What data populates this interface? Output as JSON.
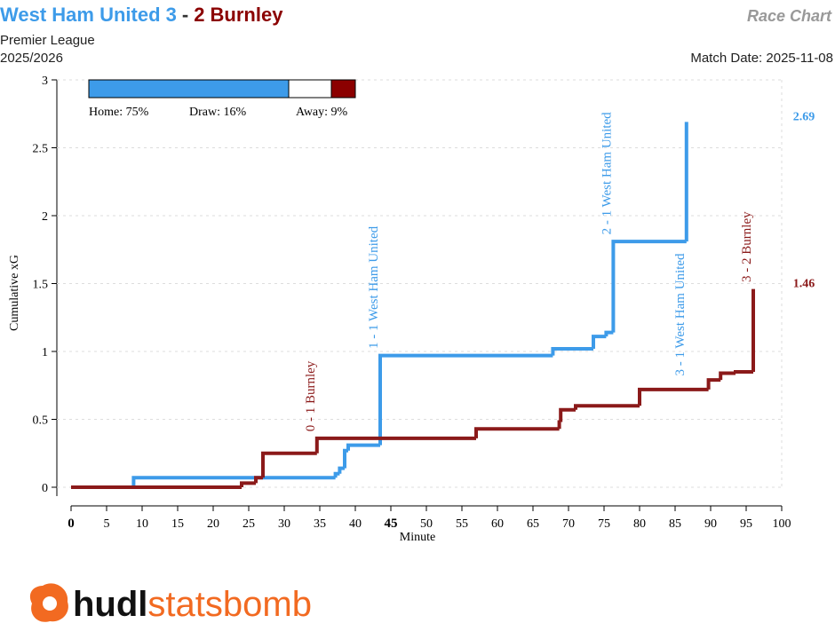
{
  "chart_data": {
    "type": "step",
    "title_home": "West Ham United 3",
    "title_separator": "-",
    "title_away": "2 Burnley",
    "subtitle": "Premier League",
    "season": "2025/2026",
    "chart_name": "Race Chart",
    "match_date": "Match Date: 2025-11-08",
    "xlabel": "Minute",
    "ylabel": "Cumulative xG",
    "xlim": [
      0,
      100
    ],
    "xticks": [
      0,
      5,
      10,
      15,
      20,
      25,
      30,
      35,
      40,
      45,
      50,
      55,
      60,
      65,
      70,
      75,
      80,
      85,
      90,
      95,
      100
    ],
    "highlight_xtick": 45,
    "ylim": [
      0,
      3
    ],
    "yticks": [
      0,
      0.5,
      1,
      1.5,
      2,
      2.5,
      3
    ],
    "grid": true,
    "series": [
      {
        "name": "West Ham United",
        "color": "#3d9be9",
        "x": [
          0,
          8.8,
          37.2,
          37.8,
          38.5,
          39,
          43.5,
          67.8,
          73.5,
          75.3,
          76.3,
          86.6
        ],
        "values": [
          0,
          0.07,
          0.1,
          0.14,
          0.27,
          0.31,
          0.97,
          1.02,
          1.11,
          1.14,
          1.81,
          2.69
        ]
      },
      {
        "name": "Burnley",
        "color": "#8b1a1a",
        "x": [
          0,
          24,
          26,
          27,
          34.6,
          57,
          68.7,
          68.9,
          71,
          80,
          89.7,
          91.4,
          93.5,
          96
        ],
        "values": [
          0,
          0.03,
          0.07,
          0.25,
          0.36,
          0.43,
          0.48,
          0.57,
          0.6,
          0.72,
          0.79,
          0.84,
          0.85,
          1.46
        ]
      }
    ],
    "goals": [
      {
        "minute": 34.6,
        "series": 1,
        "text": "0 - 1 Burnley"
      },
      {
        "minute": 43.5,
        "series": 0,
        "text": "1 - 1 West Ham United"
      },
      {
        "minute": 76.3,
        "series": 0,
        "text": "2 - 1 West Ham United"
      },
      {
        "minute": 86.6,
        "series": 0,
        "text": "3 - 1 West Ham United"
      },
      {
        "minute": 96,
        "series": 1,
        "text": "3 - 2 Burnley"
      }
    ],
    "probabilities": [
      {
        "label": "Home: 75%",
        "value": 75,
        "color": "#3d9be9"
      },
      {
        "label": "Draw: 16%",
        "value": 16,
        "color": "#ffffff"
      },
      {
        "label": "Away: 9%",
        "value": 9,
        "color": "#8b0000"
      }
    ],
    "logo_parts": [
      "hudl",
      "statsbomb"
    ]
  }
}
